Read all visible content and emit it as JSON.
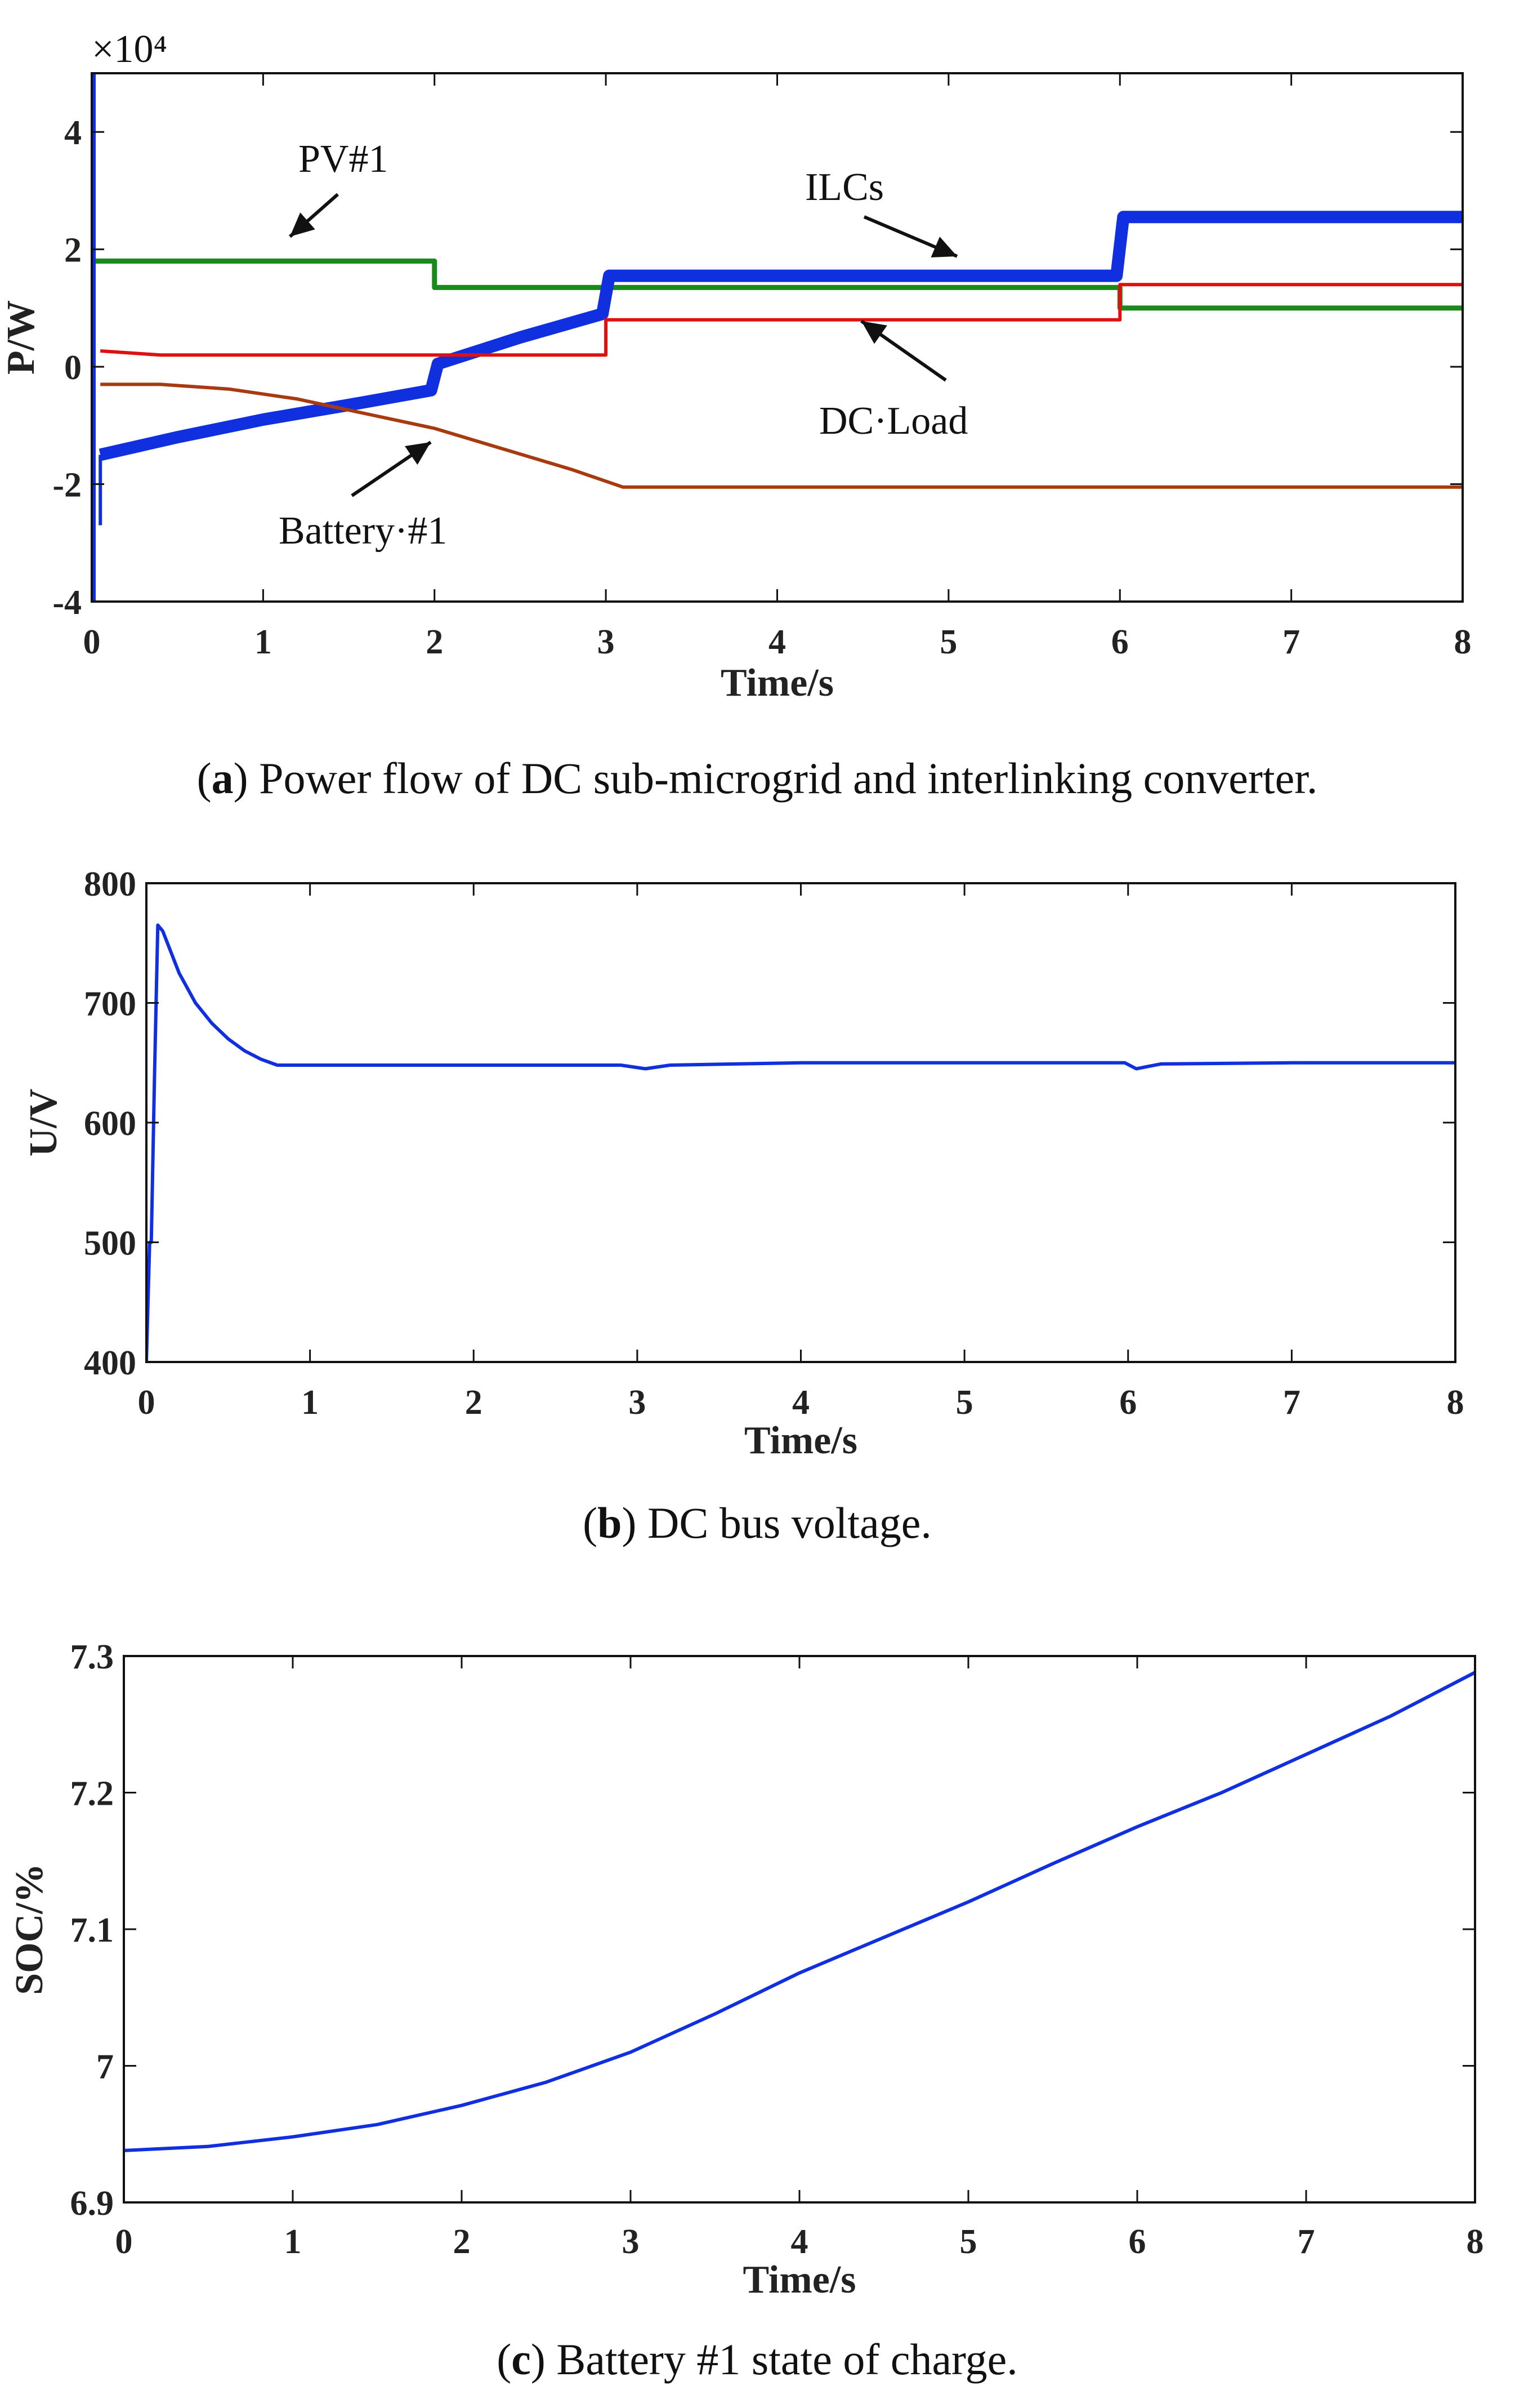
{
  "chart_data": [
    {
      "type": "line",
      "caption_letter": "a",
      "caption_text": "Power flow of DC sub-microgrid and interlinking converter.",
      "xlabel": "Time/s",
      "ylabel": "P/W",
      "exponent_label": "×10⁴",
      "xlim": [
        0,
        8
      ],
      "ylim": [
        -4,
        5
      ],
      "xticks": [
        0,
        1,
        2,
        3,
        4,
        5,
        6,
        7,
        8
      ],
      "yticks": [
        -4,
        -2,
        0,
        2,
        4
      ],
      "series": [
        {
          "name": "PV#1",
          "color": "#1a8a1a",
          "x": [
            0,
            0.05,
            2.0,
            2.0,
            3.0,
            3.0,
            6.0,
            6.0,
            8.0
          ],
          "y": [
            1.8,
            1.8,
            1.8,
            1.35,
            1.35,
            1.35,
            1.35,
            1.0,
            1.0
          ]
        },
        {
          "name": "ILCs",
          "color": "#1030e0",
          "x": [
            0.05,
            0.5,
            1.0,
            1.5,
            1.98,
            2.02,
            2.5,
            2.98,
            3.02,
            4.0,
            5.0,
            5.98,
            6.02,
            7.0,
            8.0
          ],
          "y": [
            -1.5,
            -1.2,
            -0.9,
            -0.65,
            -0.4,
            0.05,
            0.5,
            0.9,
            1.55,
            1.55,
            1.55,
            1.55,
            2.55,
            2.55,
            2.55
          ]
        },
        {
          "name": "DC·Load",
          "color": "#e01010",
          "x": [
            0.05,
            0.4,
            3.0,
            3.0,
            6.0,
            6.0,
            8.0
          ],
          "y": [
            0.27,
            0.2,
            0.2,
            0.8,
            0.8,
            1.4,
            1.4
          ]
        },
        {
          "name": "Battery·#1",
          "color": "#a83a10",
          "x": [
            0.05,
            0.4,
            0.8,
            1.2,
            1.6,
            2.0,
            2.4,
            2.8,
            3.1,
            4.0,
            5.0,
            6.0,
            7.0,
            8.0
          ],
          "y": [
            -0.3,
            -0.3,
            -0.38,
            -0.55,
            -0.8,
            -1.05,
            -1.4,
            -1.75,
            -2.05,
            -2.05,
            -2.05,
            -2.05,
            -2.05,
            -2.05
          ]
        }
      ],
      "annotations": [
        "PV#1",
        "ILCs",
        "DC·Load",
        "Battery·#1"
      ]
    },
    {
      "type": "line",
      "caption_letter": "b",
      "caption_text": "DC bus voltage.",
      "xlabel": "Time/s",
      "ylabel": "U/V",
      "xlim": [
        0,
        8
      ],
      "ylim": [
        400,
        800
      ],
      "xticks": [
        0,
        1,
        2,
        3,
        4,
        5,
        6,
        7,
        8
      ],
      "yticks": [
        400,
        500,
        600,
        700,
        800
      ],
      "series": [
        {
          "name": "DC bus voltage",
          "color": "#1030e0",
          "x": [
            0,
            0.02,
            0.03,
            0.05,
            0.07,
            0.1,
            0.2,
            0.3,
            0.4,
            0.5,
            0.6,
            0.7,
            0.8,
            1.0,
            2.0,
            2.9,
            3.05,
            3.2,
            4.0,
            5.0,
            5.98,
            6.05,
            6.2,
            7.0,
            8.0
          ],
          "y": [
            400,
            500,
            500,
            640,
            765,
            760,
            725,
            700,
            683,
            670,
            660,
            653,
            648,
            648,
            648,
            648,
            645,
            648,
            650,
            650,
            650,
            645,
            649,
            650,
            650
          ]
        }
      ]
    },
    {
      "type": "line",
      "caption_letter": "c",
      "caption_text": "Battery #1 state of charge.",
      "xlabel": "Time/s",
      "ylabel": "SOC/%",
      "xlim": [
        0,
        8
      ],
      "ylim": [
        6.9,
        7.3
      ],
      "xticks": [
        0,
        1,
        2,
        3,
        4,
        5,
        6,
        7,
        8
      ],
      "yticks": [
        6.9,
        7,
        7.1,
        7.2,
        7.3
      ],
      "ytick_labels": [
        "6.9",
        "7",
        "7.1",
        "7.2",
        "7.3"
      ],
      "series": [
        {
          "name": "SOC",
          "color": "#1030e0",
          "x": [
            0,
            0.5,
            1.0,
            1.5,
            2.0,
            2.5,
            3.0,
            3.5,
            4.0,
            4.5,
            5.0,
            5.5,
            6.0,
            6.5,
            7.0,
            7.5,
            8.0
          ],
          "y": [
            6.938,
            6.941,
            6.948,
            6.957,
            6.971,
            6.988,
            7.01,
            7.038,
            7.068,
            7.094,
            7.12,
            7.148,
            7.175,
            7.2,
            7.228,
            7.256,
            7.288
          ]
        }
      ]
    }
  ]
}
